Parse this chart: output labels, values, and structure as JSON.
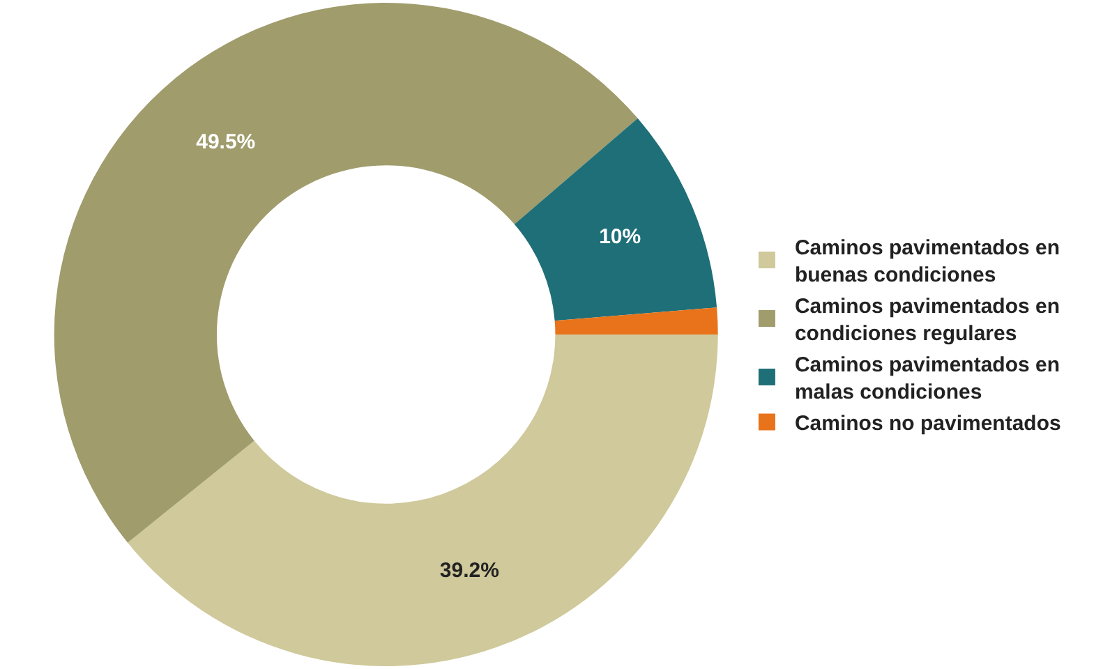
{
  "chart_data": {
    "type": "donut",
    "categories": [
      "Caminos pavimentados en buenas condiciones",
      "Caminos pavimentados en condiciones regulares",
      "Caminos pavimentados en malas condiciones",
      "Caminos no pavimentados"
    ],
    "values": [
      39.2,
      49.5,
      10,
      1.3
    ],
    "value_labels": [
      "39.2%",
      "49.5%",
      "10%",
      null
    ],
    "colors": [
      "#cfc99b",
      "#a09c6c",
      "#1f6f78",
      "#e8731a"
    ],
    "legend": "right"
  }
}
